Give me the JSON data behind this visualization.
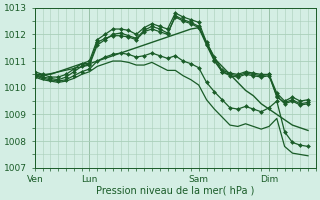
{
  "bg_color": "#d4eee4",
  "grid_color": "#aacfba",
  "line_color": "#1a5c28",
  "marker_color": "#1a5c28",
  "xlabel": "Pression niveau de la mer( hPa )",
  "ylim": [
    1007,
    1013
  ],
  "yticks": [
    1007,
    1008,
    1009,
    1010,
    1011,
    1012,
    1013
  ],
  "day_labels": [
    "Ven",
    "Lun",
    "Sam",
    "Dim"
  ],
  "day_positions": [
    0,
    7,
    21,
    30
  ],
  "vlines": [
    0,
    7,
    21,
    30
  ],
  "xlim": [
    0,
    36
  ],
  "series": [
    {
      "x": [
        0,
        1,
        2,
        3,
        4,
        5,
        6,
        7,
        8,
        9,
        10,
        11,
        12,
        13,
        14,
        15,
        16,
        17,
        18,
        19,
        20,
        21,
        22,
        23,
        24,
        25,
        26,
        27,
        28,
        29,
        30,
        31,
        32,
        33,
        34,
        35
      ],
      "y": [
        1010.5,
        1010.5,
        1010.5,
        1010.6,
        1010.7,
        1010.8,
        1010.9,
        1010.9,
        1011.0,
        1011.1,
        1011.2,
        1011.3,
        1011.4,
        1011.5,
        1011.6,
        1011.7,
        1011.8,
        1011.9,
        1012.0,
        1012.1,
        1012.2,
        1012.25,
        1011.7,
        1011.1,
        1010.8,
        1010.5,
        1010.2,
        1009.9,
        1009.7,
        1009.4,
        1009.2,
        1009.0,
        1008.8,
        1008.6,
        1008.5,
        1008.4
      ],
      "marker": null,
      "lw": 1.0
    },
    {
      "x": [
        0,
        1,
        2,
        3,
        4,
        5,
        6,
        7,
        8,
        9,
        10,
        11,
        12,
        13,
        14,
        15,
        16,
        17,
        18,
        19,
        20,
        21,
        22,
        23,
        24,
        25,
        26,
        27,
        28,
        29,
        30,
        31,
        32,
        33,
        34,
        35
      ],
      "y": [
        1010.6,
        1010.5,
        1010.4,
        1010.4,
        1010.5,
        1010.7,
        1010.9,
        1011.0,
        1011.8,
        1012.0,
        1012.2,
        1012.2,
        1012.15,
        1012.0,
        1012.25,
        1012.4,
        1012.3,
        1012.2,
        1012.8,
        1012.65,
        1012.55,
        1012.45,
        1011.7,
        1011.15,
        1010.65,
        1010.55,
        1010.5,
        1010.6,
        1010.55,
        1010.5,
        1010.5,
        1009.8,
        1009.5,
        1009.65,
        1009.5,
        1009.55
      ],
      "marker": "D",
      "lw": 0.9
    },
    {
      "x": [
        0,
        1,
        2,
        3,
        4,
        5,
        6,
        7,
        8,
        9,
        10,
        11,
        12,
        13,
        14,
        15,
        16,
        17,
        18,
        19,
        20,
        21,
        22,
        23,
        24,
        25,
        26,
        27,
        28,
        29,
        30,
        31,
        32,
        33,
        34,
        35
      ],
      "y": [
        1010.5,
        1010.4,
        1010.35,
        1010.3,
        1010.4,
        1010.6,
        1010.8,
        1010.9,
        1011.7,
        1011.85,
        1011.95,
        1011.95,
        1011.9,
        1011.8,
        1012.1,
        1012.2,
        1012.1,
        1012.0,
        1012.7,
        1012.55,
        1012.45,
        1012.3,
        1011.65,
        1011.05,
        1010.6,
        1010.5,
        1010.45,
        1010.55,
        1010.5,
        1010.45,
        1010.5,
        1009.65,
        1009.45,
        1009.55,
        1009.4,
        1009.45
      ],
      "marker": "D",
      "lw": 0.9
    },
    {
      "x": [
        0,
        7,
        8,
        9,
        10,
        11,
        12,
        13,
        14,
        15,
        16,
        17,
        18,
        19,
        20,
        21,
        22,
        23,
        24,
        25,
        26,
        27,
        28,
        29,
        30,
        31,
        32,
        33,
        34,
        35
      ],
      "y": [
        1010.4,
        1010.85,
        1011.6,
        1011.8,
        1012.0,
        1012.05,
        1011.95,
        1011.85,
        1012.15,
        1012.3,
        1012.2,
        1012.05,
        1012.65,
        1012.5,
        1012.4,
        1012.25,
        1011.6,
        1011.0,
        1010.6,
        1010.45,
        1010.4,
        1010.5,
        1010.45,
        1010.4,
        1010.45,
        1009.7,
        1009.4,
        1009.5,
        1009.35,
        1009.4
      ],
      "marker": "D",
      "lw": 0.9
    },
    {
      "x": [
        0,
        1,
        2,
        3,
        4,
        5,
        6,
        7,
        8,
        9,
        10,
        11,
        12,
        13,
        14,
        15,
        16,
        17,
        18,
        19,
        20,
        21,
        22,
        23,
        24,
        25,
        26,
        27,
        28,
        29,
        30,
        31,
        32,
        33,
        34,
        35
      ],
      "y": [
        1010.45,
        1010.35,
        1010.3,
        1010.25,
        1010.3,
        1010.45,
        1010.6,
        1010.7,
        1011.0,
        1011.15,
        1011.25,
        1011.3,
        1011.25,
        1011.15,
        1011.2,
        1011.3,
        1011.2,
        1011.1,
        1011.2,
        1011.0,
        1010.9,
        1010.75,
        1010.2,
        1009.85,
        1009.55,
        1009.25,
        1009.2,
        1009.3,
        1009.2,
        1009.1,
        1009.25,
        1009.5,
        1008.35,
        1007.95,
        1007.85,
        1007.8
      ],
      "marker": "D",
      "lw": 0.9
    },
    {
      "x": [
        0,
        1,
        2,
        3,
        4,
        5,
        6,
        7,
        8,
        9,
        10,
        11,
        12,
        13,
        14,
        15,
        16,
        17,
        18,
        19,
        20,
        21,
        22,
        23,
        24,
        25,
        26,
        27,
        28,
        29,
        30,
        31,
        32,
        33,
        34,
        35
      ],
      "y": [
        1010.4,
        1010.3,
        1010.25,
        1010.2,
        1010.25,
        1010.35,
        1010.5,
        1010.6,
        1010.8,
        1010.9,
        1011.0,
        1011.0,
        1010.95,
        1010.85,
        1010.85,
        1010.95,
        1010.8,
        1010.65,
        1010.65,
        1010.45,
        1010.3,
        1010.1,
        1009.55,
        1009.2,
        1008.9,
        1008.6,
        1008.55,
        1008.65,
        1008.55,
        1008.45,
        1008.55,
        1008.85,
        1007.8,
        1007.55,
        1007.5,
        1007.45
      ],
      "marker": null,
      "lw": 0.9
    }
  ]
}
